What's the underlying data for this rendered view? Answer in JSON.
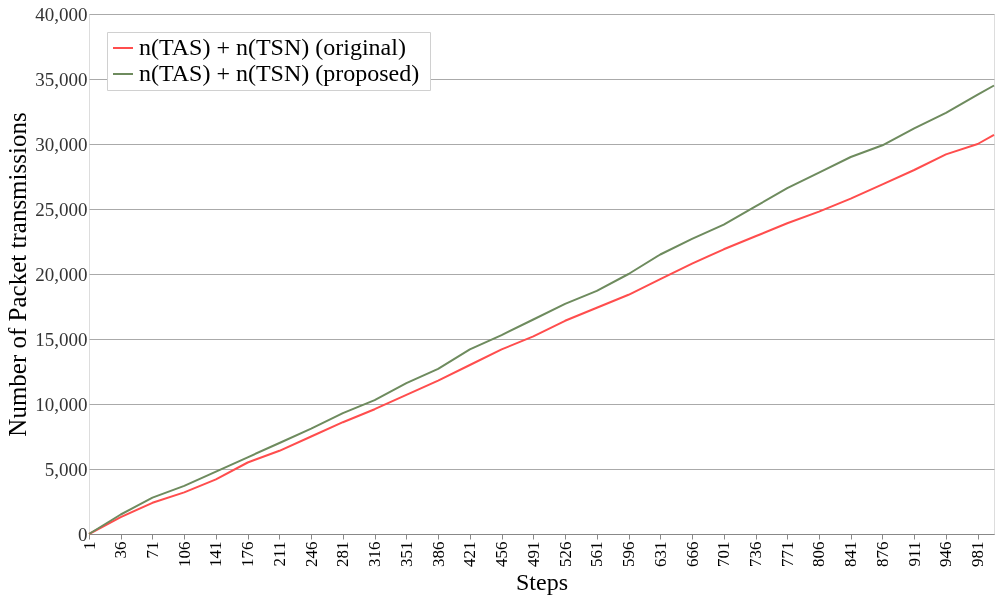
{
  "chart_data": {
    "type": "line",
    "xlabel": "Steps",
    "ylabel": "Number of Packet transmissions",
    "xlim": [
      1,
      999
    ],
    "xticks": [
      1,
      36,
      71,
      106,
      141,
      176,
      211,
      246,
      281,
      316,
      351,
      386,
      421,
      456,
      491,
      526,
      561,
      596,
      631,
      666,
      701,
      736,
      771,
      806,
      841,
      876,
      911,
      946,
      981
    ],
    "ylim": [
      0,
      40000
    ],
    "yticks": [
      0,
      {
        "value": 5000,
        "label": "5,000"
      },
      {
        "value": 10000,
        "label": "10,000"
      },
      {
        "value": 15000,
        "label": "15,000"
      },
      {
        "value": 20000,
        "label": "20,000"
      },
      {
        "value": 25000,
        "label": "25,000"
      },
      {
        "value": 30000,
        "label": "30,000"
      },
      {
        "value": 35000,
        "label": "35,000"
      },
      {
        "value": 40000,
        "label": "40,000"
      }
    ],
    "grid": "y",
    "legend": "top left",
    "marker": "none",
    "line_style": "solid",
    "x": [
      1,
      36,
      71,
      106,
      141,
      176,
      211,
      246,
      281,
      316,
      351,
      386,
      421,
      456,
      491,
      526,
      561,
      596,
      631,
      666,
      701,
      736,
      771,
      806,
      841,
      876,
      911,
      946,
      981,
      999
    ],
    "series": [
      {
        "name": "n(TAS) + n(TSN)  (original)",
        "color": "#ff4d4d",
        "values": [
          0,
          1300,
          2400,
          3200,
          4200,
          5500,
          6400,
          7500,
          8600,
          9600,
          10700,
          11800,
          13000,
          14200,
          15200,
          16400,
          17400,
          18400,
          19600,
          20800,
          21900,
          22900,
          23900,
          24800,
          25800,
          26900,
          28000,
          29200,
          30000,
          30700
        ]
      },
      {
        "name": "n(TAS) + n(TSN)  (proposed)",
        "color": "#6e8b5e",
        "values": [
          0,
          1500,
          2800,
          3700,
          4800,
          5900,
          7000,
          8100,
          9300,
          10300,
          11600,
          12700,
          14200,
          15300,
          16500,
          17700,
          18700,
          20000,
          21500,
          22700,
          23800,
          25200,
          26600,
          27800,
          29000,
          29900,
          31200,
          32400,
          33800,
          34500
        ]
      }
    ]
  }
}
